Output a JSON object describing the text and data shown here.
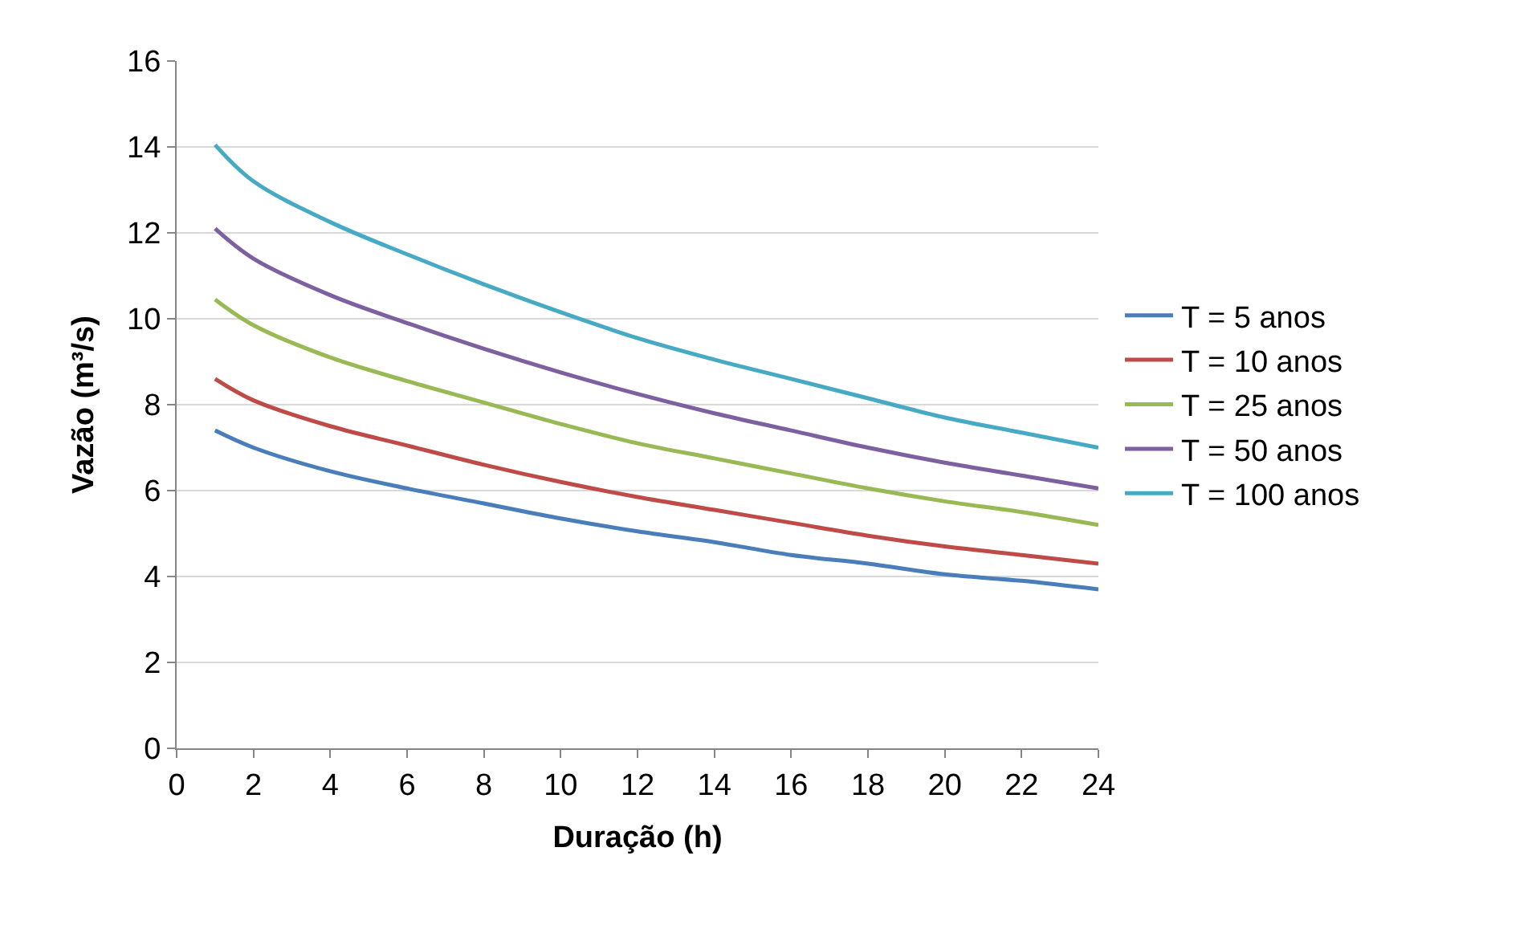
{
  "chart_data": {
    "type": "line",
    "xlabel": "Duração (h)",
    "ylabel": "Vazão (m³/s)",
    "x": [
      1,
      2,
      4,
      6,
      8,
      10,
      12,
      14,
      16,
      18,
      20,
      22,
      24
    ],
    "series": [
      {
        "name": "T = 5 anos",
        "color": "#4a7ebb",
        "values": [
          7.4,
          7.0,
          6.45,
          6.05,
          5.7,
          5.35,
          5.05,
          4.8,
          4.5,
          4.3,
          4.05,
          3.9,
          3.7
        ]
      },
      {
        "name": "T = 10 anos",
        "color": "#be4b48",
        "values": [
          8.6,
          8.1,
          7.5,
          7.05,
          6.6,
          6.2,
          5.85,
          5.55,
          5.25,
          4.95,
          4.7,
          4.5,
          4.3
        ]
      },
      {
        "name": "T = 25 anos",
        "color": "#98b954",
        "values": [
          10.45,
          9.85,
          9.1,
          8.55,
          8.05,
          7.55,
          7.1,
          6.75,
          6.4,
          6.05,
          5.75,
          5.5,
          5.2
        ]
      },
      {
        "name": "T = 50 anos",
        "color": "#7d60a0",
        "values": [
          12.1,
          11.4,
          10.55,
          9.9,
          9.3,
          8.75,
          8.25,
          7.8,
          7.4,
          7.0,
          6.65,
          6.35,
          6.05
        ]
      },
      {
        "name": "T = 100 anos",
        "color": "#46aac5",
        "values": [
          14.05,
          13.2,
          12.25,
          11.5,
          10.8,
          10.15,
          9.55,
          9.05,
          8.6,
          8.15,
          7.7,
          7.35,
          7.0
        ]
      }
    ],
    "xlim": [
      0,
      24
    ],
    "xticks": [
      0,
      2,
      4,
      6,
      8,
      10,
      12,
      14,
      16,
      18,
      20,
      22,
      24
    ],
    "ylim": [
      0,
      16
    ],
    "yticks": [
      0,
      2,
      4,
      6,
      8,
      10,
      12,
      14,
      16
    ],
    "grid": "y",
    "legend": "right",
    "marker": "none",
    "line_style": "solid"
  }
}
